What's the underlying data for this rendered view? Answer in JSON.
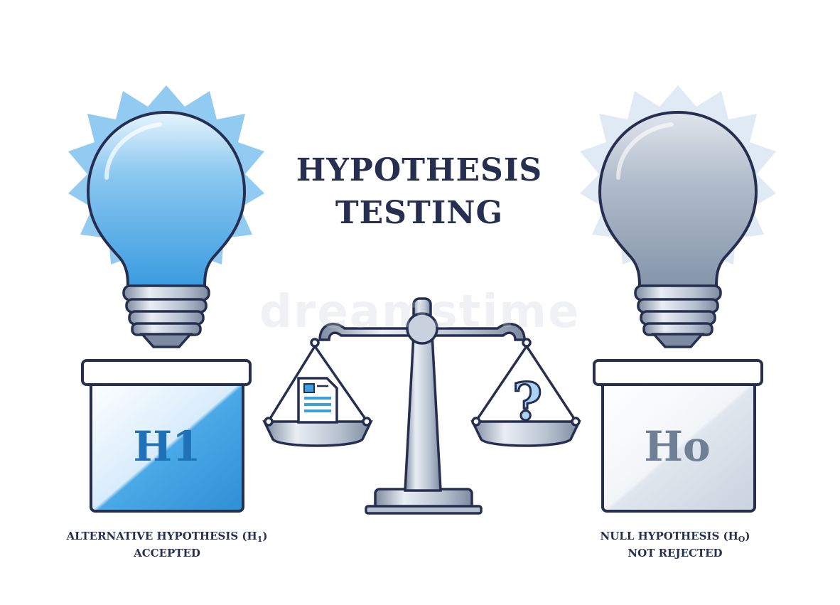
{
  "title": {
    "line1": "HYPOTHESIS",
    "line2": "TESTING"
  },
  "left": {
    "box_label": "H1",
    "caption_line1_pre": "ALTERNATIVE HYPOTHESIS (H",
    "caption_line1_sub": "1",
    "caption_line1_post": ")",
    "caption_line2": "ACCEPTED",
    "bulb_state": "lit"
  },
  "right": {
    "box_label": "Ho",
    "caption_line1_pre": "NULL HYPOTHESIS (H",
    "caption_line1_sub": "O",
    "caption_line1_post": ")",
    "caption_line2": "NOT REJECTED",
    "bulb_state": "unlit"
  },
  "scale": {
    "right_pan_symbol": "?",
    "left_pan_item": "document-icon"
  },
  "watermark": "dreamstime",
  "colors": {
    "navy": "#262f50",
    "bright_blue": "#3aa0e0",
    "light_blue": "#a9d3f3",
    "grey_blue": "#a5b3c6",
    "outline": "#262f50"
  }
}
